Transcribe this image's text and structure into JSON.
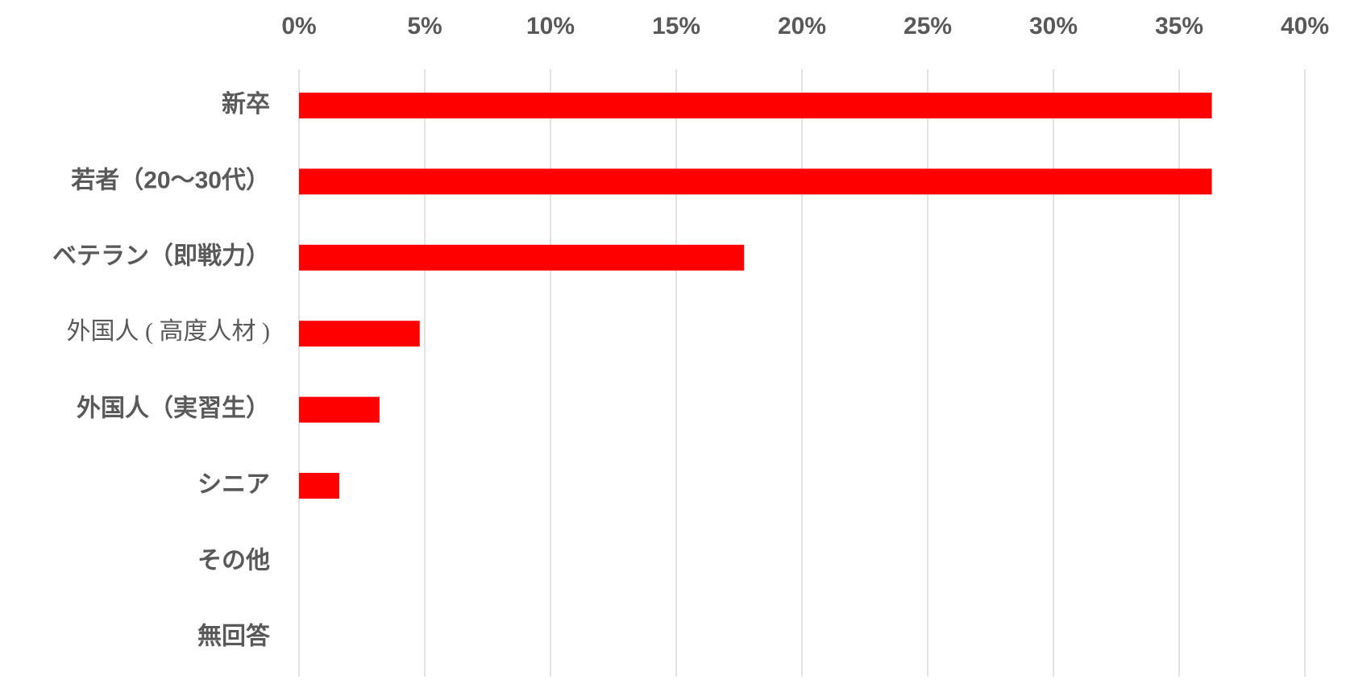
{
  "chart_data": {
    "type": "hbar",
    "categories": [
      "新卒",
      "若者（20～30代）",
      "ベテラン（即戦力）",
      "外国人 ( 高度人材 )",
      "外国人（実習生）",
      "シニア",
      "その他",
      "無回答"
    ],
    "values": [
      36.3,
      36.3,
      17.7,
      4.8,
      3.2,
      1.6,
      0,
      0
    ],
    "color": "#ff0000",
    "xlim": [
      0,
      40
    ],
    "xticks": [
      {
        "value": 0,
        "label": "0%"
      },
      {
        "value": 5,
        "label": "5%"
      },
      {
        "value": 10,
        "label": "10%"
      },
      {
        "value": 15,
        "label": "15%"
      },
      {
        "value": 20,
        "label": "20%"
      },
      {
        "value": 25,
        "label": "25%"
      },
      {
        "value": 30,
        "label": "30%"
      },
      {
        "value": 35,
        "label": "35%"
      },
      {
        "value": 40,
        "label": "40%"
      }
    ],
    "grid": true
  }
}
